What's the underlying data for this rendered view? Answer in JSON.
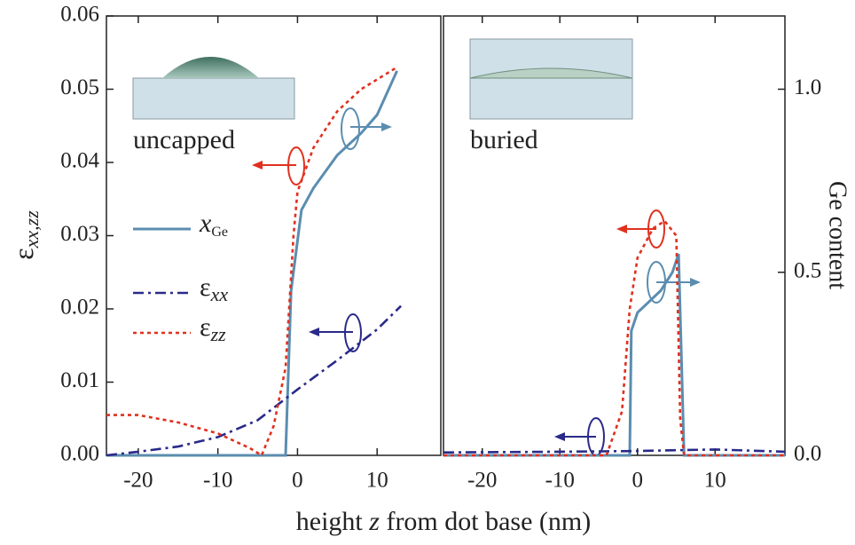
{
  "chart_data": [
    {
      "type": "line",
      "label": "uncapped",
      "xlabel": {
        "parts": [
          "height ",
          "z",
          " from dot base (nm)"
        ]
      },
      "ylabel": {
        "symbol": "ε",
        "subscript": "xx,zz"
      },
      "xlim": [
        -24,
        18
      ],
      "xticks": [
        -20,
        -10,
        0,
        10
      ],
      "ylim": [
        0,
        0.06
      ],
      "yticks": [
        {
          "value": 0,
          "label": "0.00"
        },
        {
          "value": 0.01,
          "label": "0.01"
        },
        {
          "value": 0.02,
          "label": "0.02"
        },
        {
          "value": 0.03,
          "label": "0.03"
        },
        {
          "value": 0.04,
          "label": "0.04"
        },
        {
          "value": 0.05,
          "label": "0.05"
        },
        {
          "value": 0.06,
          "label": "0.06"
        }
      ],
      "y2lim": [
        0,
        1.2
      ],
      "series": [
        {
          "name": "x",
          "subscript": "Ge",
          "color": "#5b8db0",
          "style": "solid",
          "axis": "y2",
          "x": [
            -24,
            -1.5,
            -0.8,
            0.5,
            2,
            5,
            8,
            10,
            12.5
          ],
          "values": [
            0,
            0,
            0.45,
            0.67,
            0.73,
            0.82,
            0.88,
            0.93,
            1.05
          ]
        },
        {
          "name": "ε",
          "subscript": "xx",
          "color": "#2a2a8a",
          "style": "dashdot",
          "x": [
            -24,
            -20,
            -15,
            -10,
            -5,
            0,
            5,
            10,
            13
          ],
          "values": [
            0,
            0.0005,
            0.0012,
            0.0025,
            0.0048,
            0.009,
            0.013,
            0.0172,
            0.0204
          ]
        },
        {
          "name": "ε",
          "subscript": "zz",
          "color": "#e0301e",
          "style": "dotted",
          "x": [
            -24,
            -20,
            -15,
            -10,
            -6,
            -4.5,
            -3,
            -1.5,
            -0.5,
            0,
            2,
            5,
            8,
            12.5
          ],
          "values": [
            0.0055,
            0.0055,
            0.0045,
            0.003,
            0.001,
            0,
            0.004,
            0.012,
            0.03,
            0.036,
            0.042,
            0.047,
            0.05,
            0.053
          ]
        }
      ]
    },
    {
      "type": "line",
      "label": "buried",
      "y2label": "Ge content",
      "xlim": [
        -25,
        19
      ],
      "xticks": [
        -20,
        -10,
        0,
        10
      ],
      "ylim": [
        0,
        0.06
      ],
      "y2lim": [
        0,
        1.2
      ],
      "y2ticks": [
        {
          "value": 0,
          "label": "0.0"
        },
        {
          "value": 0.5,
          "label": "0.5"
        },
        {
          "value": 1,
          "label": "1.0"
        }
      ],
      "series": [
        {
          "color": "#5b8db0",
          "style": "solid",
          "axis": "y2",
          "x": [
            -25,
            -1,
            -0.8,
            0,
            1.5,
            3,
            4.5,
            5.3,
            6,
            19
          ],
          "values": [
            0,
            0,
            0.34,
            0.39,
            0.42,
            0.45,
            0.5,
            0.55,
            0,
            0
          ]
        },
        {
          "color": "#2a2a8a",
          "style": "dashdot",
          "x": [
            -25,
            -10,
            0,
            5,
            10,
            19
          ],
          "values": [
            0.0004,
            0.0005,
            0.0006,
            0.0007,
            0.0008,
            0.0005
          ]
        },
        {
          "color": "#e0301e",
          "style": "dotted",
          "x": [
            -25,
            -4,
            -2,
            -1,
            0,
            2,
            3.5,
            5,
            5.5,
            6,
            19
          ],
          "values": [
            0,
            0,
            0.006,
            0.02,
            0.027,
            0.031,
            0.032,
            0.03,
            0.005,
            0,
            0
          ]
        }
      ]
    }
  ]
}
